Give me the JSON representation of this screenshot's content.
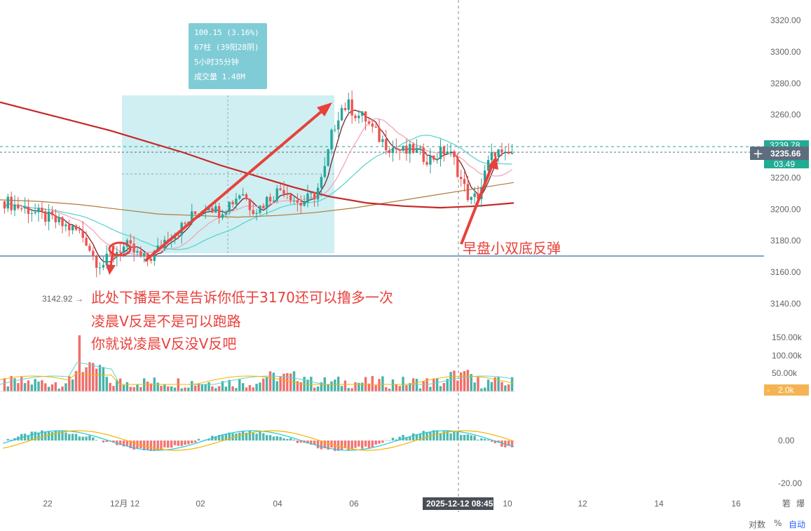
{
  "colors": {
    "up": "#26a69a",
    "down": "#ef5350",
    "ma_short": "#7a1f2b",
    "ma_pink": "#f4a6b8",
    "ma_cyan": "#5fd4cf",
    "ma_brown": "#b07a3a",
    "ma_long": "#c62828",
    "support_line": "#2f6fa8",
    "annotation": "#e8413b",
    "tooltip_bg": "#7fccd6",
    "range_fill": "#bfe9ee",
    "macd_line": "#26c6da",
    "macd_signal": "#f4b400",
    "price_badge": "#5d6d7e",
    "green_badge": "#22ab94",
    "vol_badge": "#f4b453"
  },
  "price_axis": {
    "ylim": [
      3120,
      3320
    ],
    "ticks": [
      "3320.00",
      "3300.00",
      "3280.00",
      "3260.00",
      "3240.00",
      "3220.00",
      "3200.00",
      "3180.00",
      "3160.00",
      "3140.00"
    ],
    "current_price_label": "3235.66",
    "hidden_label_top": "3239.78",
    "hidden_label_bottom": "03.49"
  },
  "volume_axis": {
    "ticks": [
      "150.00k",
      "100.00k",
      "50.00k"
    ],
    "badge": "2.0k"
  },
  "macd_axis": {
    "ticks": [
      "0.00",
      "-20.00"
    ]
  },
  "time_axis": {
    "ticks": [
      "22",
      "12月 12",
      "02",
      "04",
      "06",
      "08",
      "10",
      "12",
      "14",
      "16"
    ],
    "crosshair_label": "2025-12-12 08:45",
    "corner_icons": [
      "箬",
      "爆"
    ]
  },
  "min_marker": {
    "label": "3142.92",
    "value": 3142.92
  },
  "support_level": 3170,
  "range_tooltip": {
    "line1": "100.15 (3.16%)",
    "line2": "67柱 (39阳28阴)",
    "line3": "5小时35分钟",
    "line4": "成交量 1.48M"
  },
  "annotations": {
    "line1": "此处下播是不是告诉你低于3170还可以撸多一次",
    "line2": "凌晨V反是不是可以跑路",
    "line3": "你就说凌晨V反没V反吧",
    "rebound": "早盘小双底反弹"
  },
  "bottom_controls": {
    "log": "对数",
    "percent": "%",
    "auto": "自动"
  },
  "chart_data": {
    "type": "candlestick",
    "price_range": [
      3120,
      3320
    ],
    "min_price": 3142.92,
    "measured_range": {
      "change": 100.15,
      "change_pct": 3.16,
      "bars": 67,
      "up_bars": 39,
      "down_bars": 28,
      "duration": "5小时35分钟",
      "volume": "1.48M"
    },
    "close_path": [
      3205,
      3203,
      3201,
      3200,
      3197,
      3195,
      3193,
      3190,
      3188,
      3186,
      3180,
      3168,
      3165,
      3170,
      3175,
      3176,
      3172,
      3168,
      3170,
      3176,
      3184,
      3186,
      3190,
      3196,
      3200,
      3204,
      3198,
      3202,
      3206,
      3212,
      3202,
      3200,
      3206,
      3210,
      3214,
      3209,
      3203,
      3206,
      3210,
      3222,
      3248,
      3264,
      3266,
      3260,
      3258,
      3250,
      3244,
      3240,
      3238,
      3236,
      3238,
      3234,
      3232,
      3235,
      3238,
      3230,
      3215,
      3205,
      3210,
      3228,
      3238,
      3232,
      3236
    ],
    "ma_long": [
      3268,
      3262,
      3256,
      3250,
      3243,
      3236,
      3228,
      3221,
      3214,
      3208,
      3204,
      3202,
      3201,
      3202,
      3204
    ],
    "ma_mid": [
      3206,
      3205,
      3203,
      3200,
      3197,
      3196,
      3195,
      3196,
      3198,
      3201,
      3205,
      3209,
      3213,
      3217
    ],
    "volume_max": "150.00k",
    "macd_range": [
      -20,
      10
    ]
  }
}
